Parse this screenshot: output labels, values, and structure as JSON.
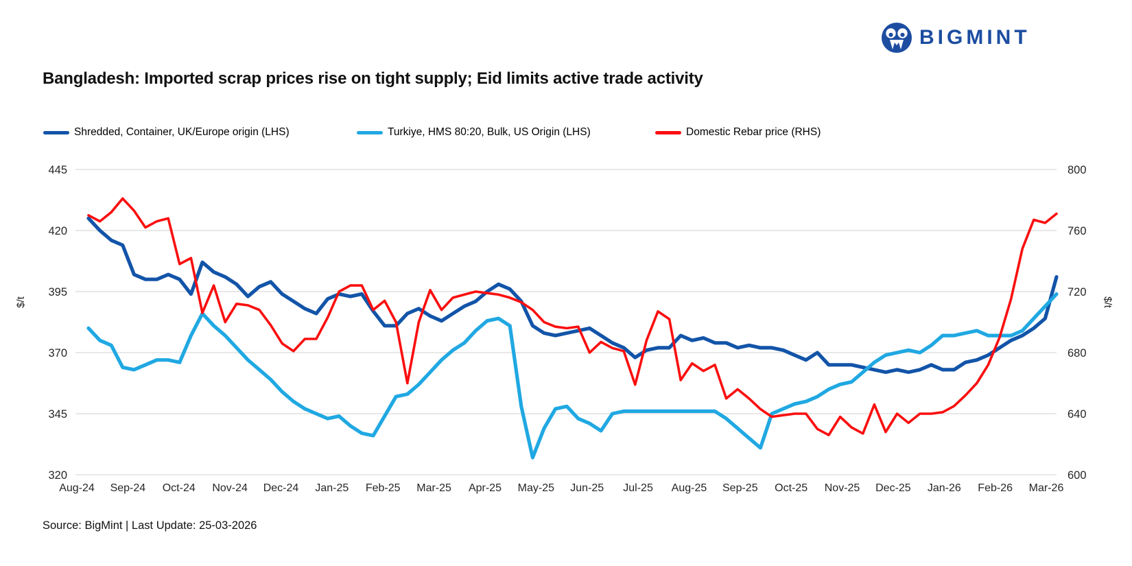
{
  "logo": {
    "text": "BIGMINT",
    "color": "#1C4DA1"
  },
  "title": "Bangladesh: Imported scrap prices rise on tight supply; Eid limits active trade activity",
  "source": "Source: BigMint | Last Update: 25-03-2026",
  "chart_data": {
    "type": "line",
    "grid": "horizontal",
    "legend_position": "top",
    "x_labels": [
      "Aug-24",
      "Sep-24",
      "Oct-24",
      "Nov-24",
      "Dec-24",
      "Jan-25",
      "Feb-25",
      "Mar-25",
      "Apr-25",
      "May-25",
      "Jun-25",
      "Jul-25",
      "Aug-25",
      "Sep-25",
      "Oct-25",
      "Nov-25",
      "Dec-25",
      "Jan-26",
      "Feb-26",
      "Mar-26"
    ],
    "left_axis": {
      "label": "$/t",
      "range": [
        320,
        445
      ],
      "ticks": [
        445,
        420,
        395,
        370,
        345,
        320
      ]
    },
    "right_axis": {
      "label": "$/t",
      "range": [
        600,
        800
      ],
      "ticks": [
        800,
        760,
        720,
        680,
        640,
        600
      ]
    },
    "gridline_color": "#D9D9D9",
    "series": [
      {
        "name": "Shredded, Container, UK/Europe origin (LHS)",
        "axis": "left",
        "color": "#1254A8",
        "values": [
          425,
          420,
          416,
          414,
          402,
          400,
          400,
          402,
          400,
          394,
          407,
          403,
          401,
          398,
          393,
          397,
          399,
          394,
          391,
          388,
          386,
          392,
          394,
          393,
          394,
          387,
          381,
          381,
          386,
          388,
          385,
          383,
          386,
          389,
          391,
          395,
          398,
          396,
          391,
          381,
          378,
          377,
          378,
          379,
          380,
          377,
          374,
          372,
          368,
          371,
          372,
          372,
          377,
          375,
          376,
          374,
          374,
          372,
          373,
          372,
          372,
          371,
          369,
          367,
          370,
          365,
          365,
          365,
          364,
          363,
          362,
          363,
          362,
          363,
          365,
          363,
          363,
          366,
          367,
          369,
          372,
          375,
          377,
          380,
          384,
          401
        ]
      },
      {
        "name": "Turkiye, HMS 80:20, Bulk, US Origin (LHS)",
        "axis": "left",
        "color": "#20A8E2",
        "values": [
          380,
          375,
          373,
          364,
          363,
          365,
          367,
          367,
          366,
          377,
          386,
          381,
          377,
          372,
          367,
          363,
          359,
          354,
          350,
          347,
          345,
          343,
          344,
          340,
          337,
          336,
          344,
          352,
          353,
          357,
          362,
          367,
          371,
          374,
          379,
          383,
          384,
          381,
          348,
          327,
          339,
          347,
          348,
          343,
          341,
          338,
          345,
          346,
          346,
          346,
          346,
          346,
          346,
          346,
          346,
          346,
          343,
          339,
          335,
          331,
          345,
          347,
          349,
          350,
          352,
          355,
          357,
          358,
          362,
          366,
          369,
          370,
          371,
          370,
          373,
          377,
          377,
          378,
          379,
          377,
          377,
          377,
          379,
          384,
          389,
          394
        ]
      },
      {
        "name": "Domestic Rebar price (RHS)",
        "axis": "right",
        "color": "#FA0F0F",
        "values": [
          770,
          766,
          772,
          781,
          773,
          762,
          766,
          768,
          738,
          742,
          706,
          724,
          700,
          712,
          711,
          708,
          698,
          686,
          681,
          689,
          689,
          703,
          720,
          724,
          724,
          708,
          714,
          700,
          660,
          700,
          721,
          708,
          716,
          718,
          720,
          719,
          718,
          716,
          713,
          708,
          700,
          697,
          696,
          697,
          680,
          687,
          683,
          681,
          659,
          688,
          707,
          702,
          662,
          673,
          668,
          672,
          650,
          656,
          650,
          643,
          638,
          639,
          640,
          640,
          630,
          626,
          638,
          631,
          627,
          646,
          628,
          640,
          634,
          640,
          640,
          641,
          645,
          652,
          660,
          672,
          690,
          715,
          748,
          767,
          765,
          771
        ]
      }
    ]
  }
}
